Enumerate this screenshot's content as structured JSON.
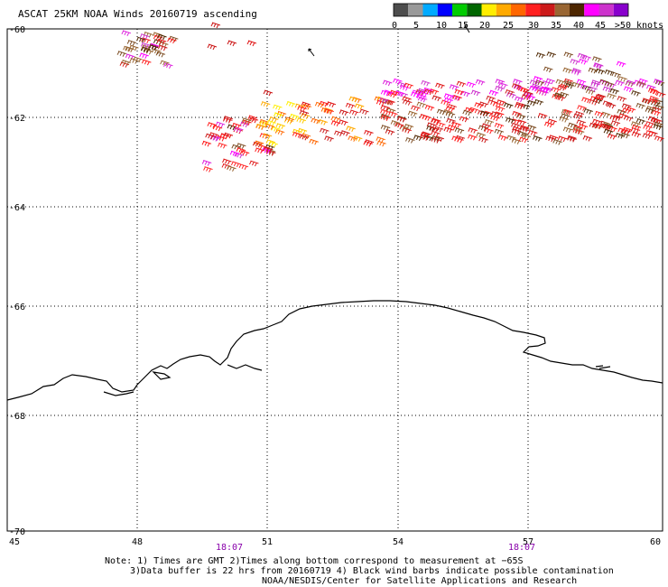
{
  "title": "ASCAT 25KM NOAA Winds 20160719 ascending",
  "legend": {
    "colors": [
      "#4d4d4d",
      "#999999",
      "#00aaff",
      "#0000ff",
      "#00cc00",
      "#006600",
      "#ffee00",
      "#ffaa00",
      "#ff6600",
      "#ff2020",
      "#cc1a1a",
      "#996633",
      "#4d2600",
      "#ff00ff",
      "#cc33cc",
      "#8800cc"
    ],
    "labels": [
      "0",
      "5",
      "10",
      "15",
      "20",
      "25",
      "30",
      "35",
      "40",
      "45",
      ">50 knots"
    ]
  },
  "axes": {
    "lat_labels": [
      "-60",
      "-62",
      "-64",
      "-66",
      "-68",
      "-70"
    ],
    "lon_labels": [
      "45",
      "48",
      "51",
      "54",
      "57",
      "60"
    ],
    "time_labels": [
      "18:07",
      "18:07"
    ],
    "time_color": "#8800aa"
  },
  "notes": {
    "line1": "Note: 1) Times are GMT 2)Times along bottom correspond to measurement at −65S",
    "line2": "3)Data buffer is 22 hrs from 20160719 4) Black wind barbs indicate possible contamination",
    "line3": "NOAA/NESDIS/Center for Satellite Applications and Research"
  },
  "colors": {
    "grid": "#000000",
    "coast": "#000000"
  }
}
